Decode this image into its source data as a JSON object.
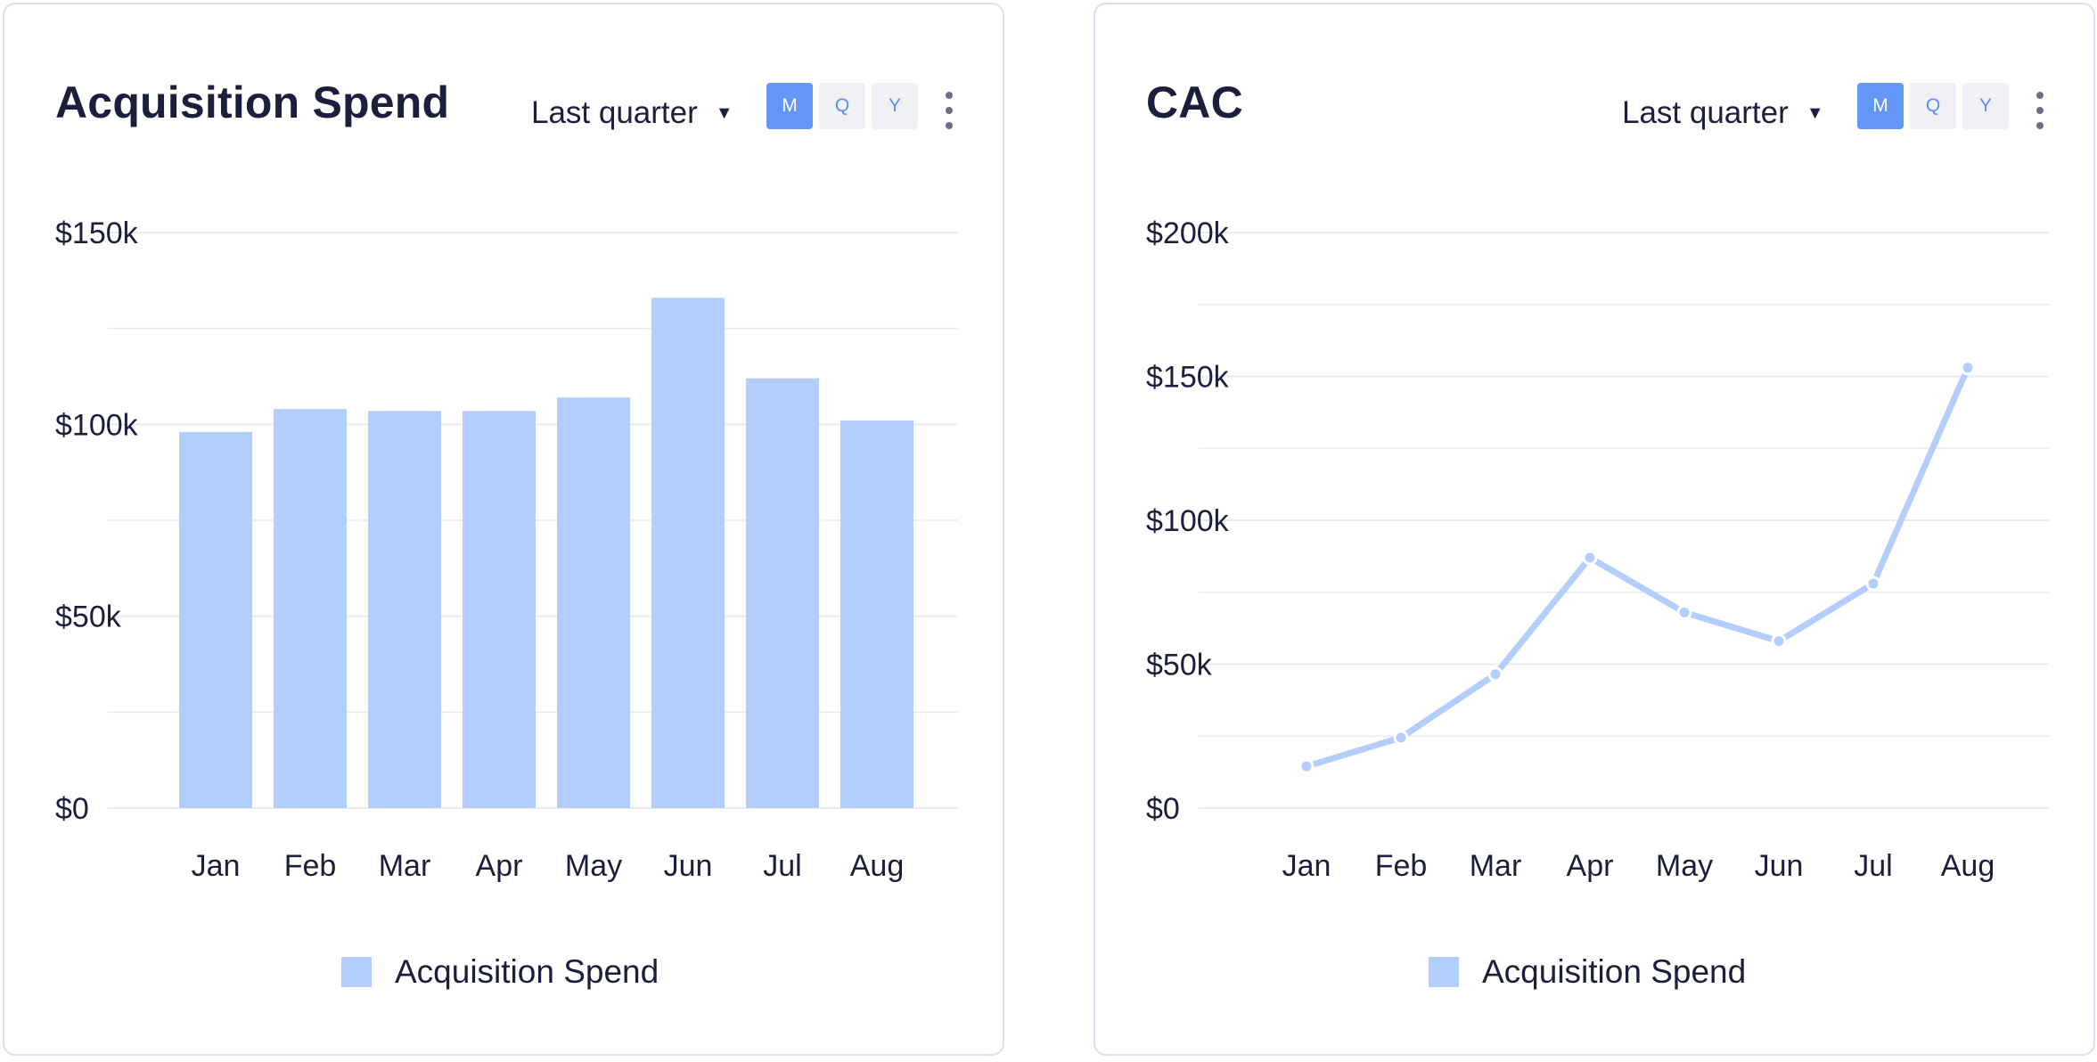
{
  "colors": {
    "series": "#b3cdfc",
    "grid": "#e9ebf1",
    "text": "#1b1f3b",
    "accent": "#6496f8"
  },
  "cards": [
    {
      "title": "Acquisition Spend",
      "period_label": "Last quarter",
      "caret": "▼",
      "segments": [
        "M",
        "Q",
        "Y"
      ],
      "active_segment": "M",
      "menu_icon": "kebab-icon"
    },
    {
      "title": "CAC",
      "period_label": "Last quarter",
      "caret": "▼",
      "segments": [
        "M",
        "Q",
        "Y"
      ],
      "active_segment": "M",
      "menu_icon": "kebab-icon"
    }
  ],
  "chart_data": [
    {
      "type": "bar",
      "title": "Acquisition Spend",
      "categories": [
        "Jan",
        "Feb",
        "Mar",
        "Apr",
        "May",
        "Jun",
        "Jul",
        "Aug"
      ],
      "series": [
        {
          "name": "Acquisition Spend",
          "values": [
            98000,
            104000,
            103500,
            103500,
            107000,
            133000,
            112000,
            101000
          ]
        }
      ],
      "ylim": [
        0,
        150000
      ],
      "yticks": [
        0,
        50000,
        100000,
        150000
      ],
      "ytick_labels": [
        "$0",
        "$50k",
        "$100k",
        "$150k"
      ],
      "minor_grid": true,
      "legend": "bottom-center"
    },
    {
      "type": "line",
      "title": "CAC",
      "categories": [
        "Jan",
        "Feb",
        "Mar",
        "Apr",
        "May",
        "Jun",
        "Jul",
        "Aug"
      ],
      "series": [
        {
          "name": "Acquisition Spend",
          "values": [
            14500,
            24500,
            46500,
            87000,
            68000,
            58000,
            78000,
            153000
          ]
        }
      ],
      "ylim": [
        0,
        200000
      ],
      "yticks": [
        0,
        50000,
        100000,
        150000,
        200000
      ],
      "ytick_labels": [
        "$0",
        "$50k",
        "$100k",
        "$150k",
        "$200k"
      ],
      "minor_grid": true,
      "legend": "bottom-center"
    }
  ]
}
